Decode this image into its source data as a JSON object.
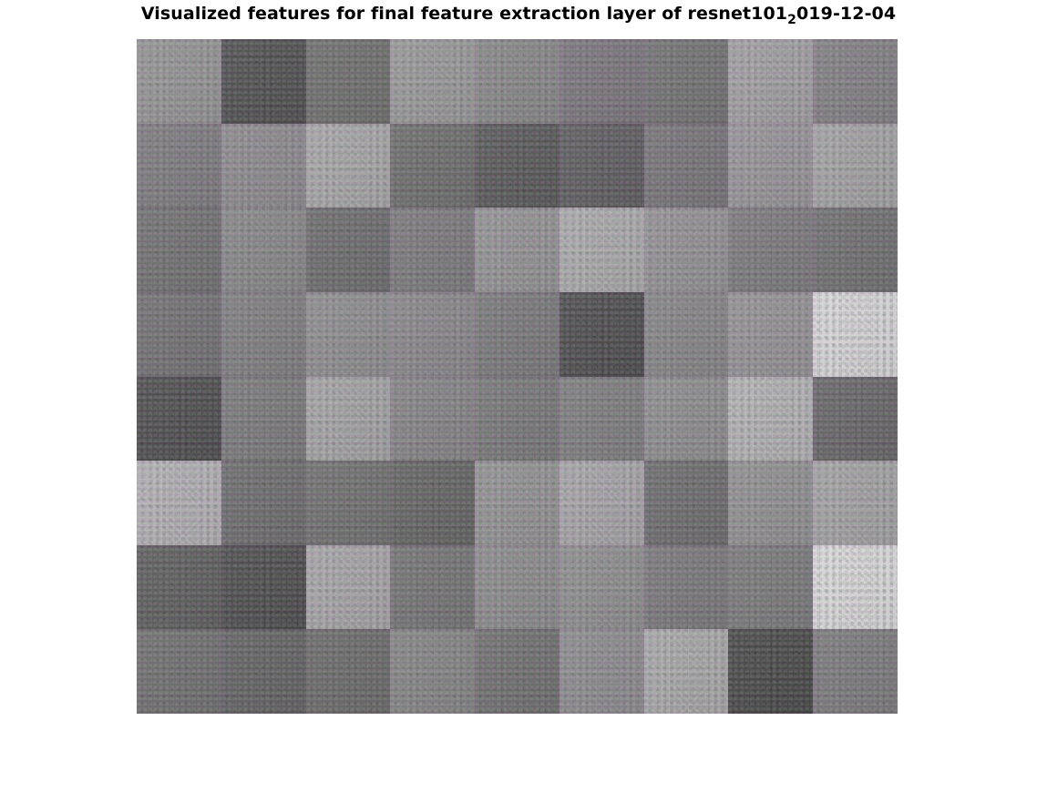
{
  "title": {
    "main": "Visualized features for final feature extraction layer of resnet101",
    "subscript": "2",
    "suffix": "019-12-04"
  },
  "montage": {
    "rows": 8,
    "cols": 9,
    "tile_colors": [
      [
        "#959595",
        "#4f4f4f",
        "#6e6f6b",
        "#9a9a9a",
        "#888888",
        "#7b767b",
        "#727272",
        "#a3a0a3",
        "#838083"
      ],
      [
        "#7e7c7e",
        "#8e8b8e",
        "#a8a8a8",
        "#6d6e6b",
        "#585858",
        "#5e5c5e",
        "#777477",
        "#989598",
        "#a4a4a4"
      ],
      [
        "#717171",
        "#888888",
        "#6c6c6c",
        "#7c7a7c",
        "#959495",
        "#acacac",
        "#949294",
        "#7c7a7c",
        "#6f6f6f"
      ],
      [
        "#727172",
        "#7f7f7f",
        "#8f8f8f",
        "#8a888a",
        "#7a797a",
        "#4c4c4c",
        "#868686",
        "#959395",
        "#d6d6d6"
      ],
      [
        "#4d4d4d",
        "#7a7a7a",
        "#a5a5a5",
        "#868486",
        "#787878",
        "#7e7e7e",
        "#8e8e8e",
        "#b3b3b3",
        "#676567"
      ],
      [
        "#b3b1b3",
        "#6c6c6c",
        "#6f706e",
        "#636461",
        "#939393",
        "#a8a6a8",
        "#6c6c6c",
        "#919191",
        "#a4a4a4"
      ],
      [
        "#5d5e5c",
        "#4c4c4c",
        "#a8a6a8",
        "#747474",
        "#8c8c8c",
        "#8f8f8f",
        "#7a787a",
        "#7a7a7a",
        "#d8d8d8"
      ],
      [
        "#6f6f6f",
        "#626262",
        "#6a6a68",
        "#858585",
        "#6f6f6f",
        "#8e8c8e",
        "#a9a9a9",
        "#474846",
        "#7c7a7c"
      ]
    ]
  }
}
